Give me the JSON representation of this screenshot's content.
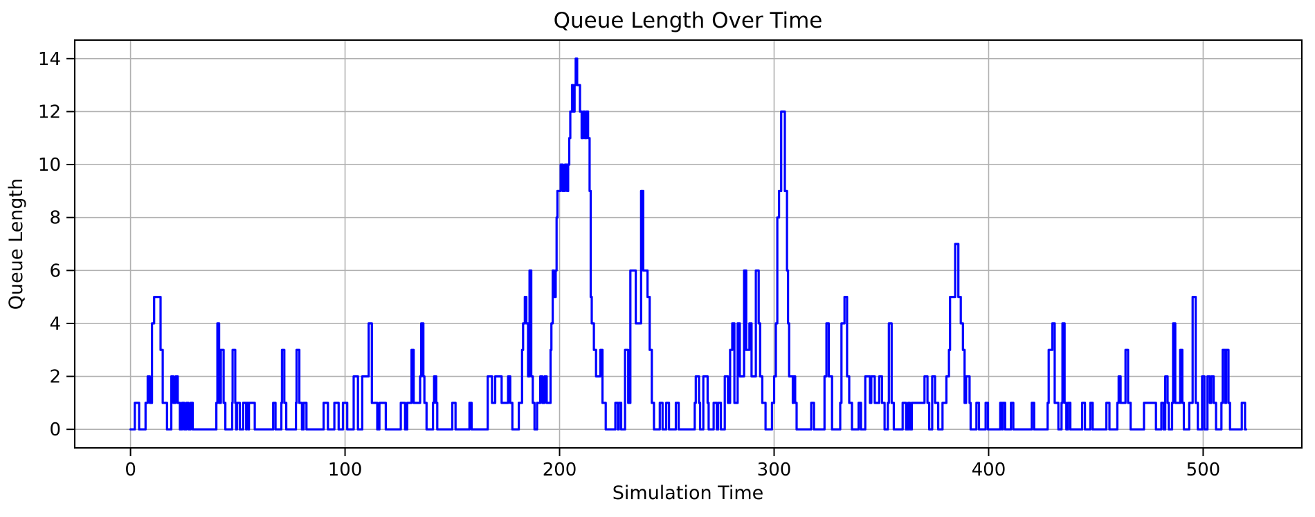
{
  "chart_data": {
    "type": "line",
    "style": "step",
    "title": "Queue Length Over Time",
    "xlabel": "Simulation Time",
    "ylabel": "Queue Length",
    "xlim": [
      -26,
      546
    ],
    "ylim": [
      -0.7,
      14.7
    ],
    "xticks": [
      0,
      100,
      200,
      300,
      400,
      500
    ],
    "yticks": [
      0,
      2,
      4,
      6,
      8,
      10,
      12,
      14
    ],
    "grid": true,
    "legend": "none",
    "line_color": "#0000ff",
    "grid_color": "#b0b0b0",
    "spine_color": "#000000",
    "background_color": "#ffffff",
    "series": [
      {
        "name": "queue_length",
        "step_points": [
          [
            0,
            0
          ],
          [
            2,
            1
          ],
          [
            4,
            0
          ],
          [
            7,
            1
          ],
          [
            8,
            2
          ],
          [
            9,
            1
          ],
          [
            10,
            4
          ],
          [
            11,
            5
          ],
          [
            14,
            3
          ],
          [
            15,
            1
          ],
          [
            17,
            0
          ],
          [
            19,
            2
          ],
          [
            20,
            1
          ],
          [
            21,
            2
          ],
          [
            22,
            1
          ],
          [
            23,
            0
          ],
          [
            24,
            1
          ],
          [
            25,
            0
          ],
          [
            26,
            1
          ],
          [
            27,
            0
          ],
          [
            28,
            1
          ],
          [
            29,
            0
          ],
          [
            40,
            1
          ],
          [
            40.5,
            4
          ],
          [
            41.3,
            1
          ],
          [
            42.1,
            3
          ],
          [
            43.4,
            1
          ],
          [
            44.2,
            0
          ],
          [
            47.4,
            1
          ],
          [
            47.6,
            3
          ],
          [
            48.8,
            1
          ],
          [
            49.2,
            0
          ],
          [
            49.6,
            1
          ],
          [
            50.9,
            0
          ],
          [
            52.5,
            1
          ],
          [
            53.9,
            0
          ],
          [
            54.1,
            1
          ],
          [
            55,
            0
          ],
          [
            55.2,
            1
          ],
          [
            57.9,
            0
          ],
          [
            66.5,
            1
          ],
          [
            67.6,
            0
          ],
          [
            70.3,
            1
          ],
          [
            70.6,
            3
          ],
          [
            71.7,
            1
          ],
          [
            72.6,
            0
          ],
          [
            77.1,
            1
          ],
          [
            77.4,
            3
          ],
          [
            78.7,
            1
          ],
          [
            79.9,
            0
          ],
          [
            80.7,
            1
          ],
          [
            82,
            0
          ],
          [
            90,
            1
          ],
          [
            92,
            0
          ],
          [
            95,
            1
          ],
          [
            97,
            0
          ],
          [
            99,
            1
          ],
          [
            101,
            0
          ],
          [
            104,
            2
          ],
          [
            106,
            0
          ],
          [
            108,
            2
          ],
          [
            111,
            4
          ],
          [
            112.5,
            1
          ],
          [
            115,
            0
          ],
          [
            116,
            1
          ],
          [
            119,
            0
          ],
          [
            126,
            1
          ],
          [
            128,
            0
          ],
          [
            129,
            1
          ],
          [
            131,
            3
          ],
          [
            132,
            1
          ],
          [
            135,
            2
          ],
          [
            135.5,
            4
          ],
          [
            136.5,
            2
          ],
          [
            137,
            1
          ],
          [
            138,
            0
          ],
          [
            141,
            1
          ],
          [
            141.5,
            2
          ],
          [
            142.5,
            1
          ],
          [
            143,
            0
          ],
          [
            150,
            1
          ],
          [
            151.5,
            0
          ],
          [
            158,
            1
          ],
          [
            159,
            0
          ],
          [
            166.5,
            2
          ],
          [
            168.5,
            1
          ],
          [
            170,
            2
          ],
          [
            173,
            1
          ],
          [
            176,
            2
          ],
          [
            177,
            1
          ],
          [
            178,
            0
          ],
          [
            181,
            1
          ],
          [
            182.5,
            3
          ],
          [
            183,
            4
          ],
          [
            183.8,
            5
          ],
          [
            184.5,
            4
          ],
          [
            185.3,
            2
          ],
          [
            186,
            6
          ],
          [
            186.8,
            2
          ],
          [
            187.5,
            1
          ],
          [
            188.3,
            0
          ],
          [
            189.5,
            1
          ],
          [
            191,
            2
          ],
          [
            192,
            1
          ],
          [
            193,
            2
          ],
          [
            194,
            1
          ],
          [
            195.8,
            3
          ],
          [
            196.2,
            4
          ],
          [
            196.8,
            6
          ],
          [
            197.4,
            5
          ],
          [
            198.2,
            6
          ],
          [
            198.6,
            8
          ],
          [
            199,
            9
          ],
          [
            200.5,
            10
          ],
          [
            201.5,
            9
          ],
          [
            202.5,
            10
          ],
          [
            203.5,
            9
          ],
          [
            204,
            10
          ],
          [
            204.5,
            11
          ],
          [
            205,
            12
          ],
          [
            205.8,
            13
          ],
          [
            206.3,
            12
          ],
          [
            207,
            13
          ],
          [
            207.5,
            14
          ],
          [
            208.2,
            13
          ],
          [
            209.5,
            12
          ],
          [
            210.3,
            11
          ],
          [
            211,
            12
          ],
          [
            211.8,
            11
          ],
          [
            212.5,
            12
          ],
          [
            213.3,
            11
          ],
          [
            214,
            9
          ],
          [
            214.5,
            5
          ],
          [
            215,
            4
          ],
          [
            216,
            3
          ],
          [
            217,
            2
          ],
          [
            219,
            3
          ],
          [
            220,
            1
          ],
          [
            221.5,
            0
          ],
          [
            226,
            1
          ],
          [
            227.2,
            0
          ],
          [
            227.6,
            1
          ],
          [
            228.7,
            0
          ],
          [
            230.5,
            3
          ],
          [
            232,
            1
          ],
          [
            233,
            6
          ],
          [
            235.5,
            4
          ],
          [
            238,
            9
          ],
          [
            239,
            6
          ],
          [
            241,
            5
          ],
          [
            242,
            3
          ],
          [
            243,
            1
          ],
          [
            244,
            0
          ],
          [
            246.7,
            1
          ],
          [
            248,
            0
          ],
          [
            249.7,
            1
          ],
          [
            251,
            0
          ],
          [
            254.2,
            1
          ],
          [
            255.5,
            0
          ],
          [
            263,
            1
          ],
          [
            263.5,
            2
          ],
          [
            265,
            1
          ],
          [
            265.5,
            0
          ],
          [
            267,
            2
          ],
          [
            269,
            1
          ],
          [
            269.5,
            0
          ],
          [
            271.8,
            1
          ],
          [
            273.3,
            0
          ],
          [
            273.9,
            1
          ],
          [
            275.2,
            0
          ],
          [
            277,
            2
          ],
          [
            278.5,
            1
          ],
          [
            279.5,
            3
          ],
          [
            280.5,
            4
          ],
          [
            281.5,
            1
          ],
          [
            283,
            4
          ],
          [
            284,
            2
          ],
          [
            286,
            6
          ],
          [
            287,
            3
          ],
          [
            288.5,
            4
          ],
          [
            289.5,
            2
          ],
          [
            291.5,
            6
          ],
          [
            292.8,
            4
          ],
          [
            293.5,
            2
          ],
          [
            294.5,
            1
          ],
          [
            296,
            0
          ],
          [
            299,
            1
          ],
          [
            300,
            2
          ],
          [
            300.8,
            4
          ],
          [
            301.5,
            8
          ],
          [
            302.3,
            9
          ],
          [
            303.3,
            12
          ],
          [
            305,
            9
          ],
          [
            306,
            6
          ],
          [
            306.5,
            4
          ],
          [
            307,
            2
          ],
          [
            308.7,
            1
          ],
          [
            309,
            2
          ],
          [
            309.8,
            1
          ],
          [
            310.5,
            0
          ],
          [
            317.3,
            1
          ],
          [
            318.6,
            0
          ],
          [
            323.5,
            2
          ],
          [
            324.4,
            4
          ],
          [
            325.5,
            2
          ],
          [
            327,
            0
          ],
          [
            330.8,
            1
          ],
          [
            331.4,
            4
          ],
          [
            332.8,
            5
          ],
          [
            334,
            2
          ],
          [
            335,
            1
          ],
          [
            336.3,
            0
          ],
          [
            339.4,
            1
          ],
          [
            340.5,
            0
          ],
          [
            342.5,
            2
          ],
          [
            344.7,
            1
          ],
          [
            345.3,
            2
          ],
          [
            346.9,
            1
          ],
          [
            349,
            2
          ],
          [
            350.3,
            1
          ],
          [
            351.5,
            0
          ],
          [
            353,
            1
          ],
          [
            353.5,
            4
          ],
          [
            354.8,
            1
          ],
          [
            355.8,
            0
          ],
          [
            359.9,
            1
          ],
          [
            361.5,
            0
          ],
          [
            362.5,
            1
          ],
          [
            363.3,
            0
          ],
          [
            364.2,
            1
          ],
          [
            370.1,
            2
          ],
          [
            371.5,
            1
          ],
          [
            372.3,
            0
          ],
          [
            373.7,
            2
          ],
          [
            375,
            1
          ],
          [
            376.5,
            0
          ],
          [
            378.5,
            1
          ],
          [
            380.3,
            2
          ],
          [
            381.5,
            3
          ],
          [
            382,
            5
          ],
          [
            384.4,
            7
          ],
          [
            385.9,
            5
          ],
          [
            387,
            4
          ],
          [
            388,
            3
          ],
          [
            388.8,
            1
          ],
          [
            389.5,
            2
          ],
          [
            391.1,
            1
          ],
          [
            391.6,
            0
          ],
          [
            394.3,
            1
          ],
          [
            395.5,
            0
          ],
          [
            398.6,
            1
          ],
          [
            399.7,
            0
          ],
          [
            405.4,
            1
          ],
          [
            406.3,
            0
          ],
          [
            406.6,
            1
          ],
          [
            407.7,
            0
          ],
          [
            410.4,
            1
          ],
          [
            411.5,
            0
          ],
          [
            420.1,
            1
          ],
          [
            421.2,
            0
          ],
          [
            427.5,
            1
          ],
          [
            428,
            3
          ],
          [
            429.7,
            4
          ],
          [
            430.8,
            1
          ],
          [
            432.5,
            0
          ],
          [
            434,
            1
          ],
          [
            434.4,
            4
          ],
          [
            435.4,
            1
          ],
          [
            436.2,
            0
          ],
          [
            437,
            1
          ],
          [
            438.1,
            0
          ],
          [
            443.6,
            1
          ],
          [
            444.9,
            0
          ],
          [
            447.4,
            1
          ],
          [
            448.5,
            0
          ],
          [
            454.9,
            1
          ],
          [
            456.3,
            0
          ],
          [
            460,
            1
          ],
          [
            460.6,
            2
          ],
          [
            461.5,
            1
          ],
          [
            463.8,
            3
          ],
          [
            465,
            1
          ],
          [
            466.2,
            0
          ],
          [
            472.4,
            1
          ],
          [
            478,
            0
          ],
          [
            480.5,
            1
          ],
          [
            481.6,
            0
          ],
          [
            482.3,
            2
          ],
          [
            483.4,
            1
          ],
          [
            484,
            0
          ],
          [
            485.5,
            1
          ],
          [
            486,
            4
          ],
          [
            487,
            1
          ],
          [
            489.3,
            3
          ],
          [
            490.3,
            1
          ],
          [
            491,
            0
          ],
          [
            493.5,
            1
          ],
          [
            495.1,
            5
          ],
          [
            496.5,
            1
          ],
          [
            497.5,
            0
          ],
          [
            499.5,
            2
          ],
          [
            500.6,
            0
          ],
          [
            502,
            2
          ],
          [
            503.1,
            1
          ],
          [
            503.8,
            2
          ],
          [
            504.9,
            1
          ],
          [
            506,
            0
          ],
          [
            508.5,
            1
          ],
          [
            509.1,
            3
          ],
          [
            510.2,
            1
          ],
          [
            510.7,
            3
          ],
          [
            511.8,
            1
          ],
          [
            512.5,
            0
          ],
          [
            518,
            1
          ],
          [
            519.5,
            0
          ],
          [
            520,
            0
          ]
        ]
      }
    ]
  }
}
